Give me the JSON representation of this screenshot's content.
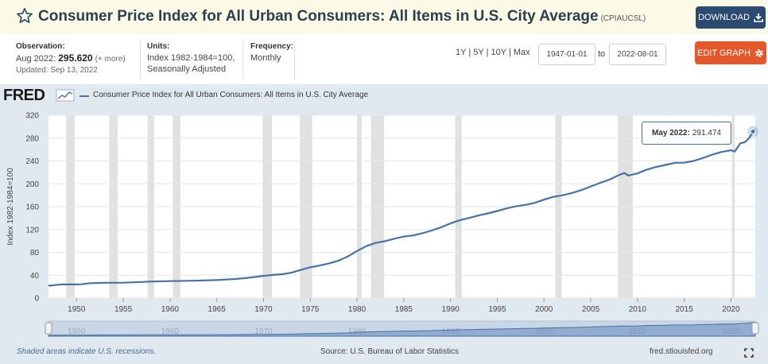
{
  "header": {
    "title": "Consumer Price Index for All Urban Consumers: All Items in U.S. City Average",
    "series_code": "(CPIAUCSL)",
    "download_label": "DOWNLOAD",
    "star_icon": "star-outline-icon",
    "download_icon": "download-icon"
  },
  "meta": {
    "observation_label": "Observation:",
    "observation_date": "Aug 2022:",
    "observation_value": "295.620",
    "observation_more": "(+ more)",
    "updated": "Updated: Sep 13, 2022",
    "units_label": "Units:",
    "units_line1": "Index 1982-1984=100,",
    "units_line2": "Seasonally Adjusted",
    "frequency_label": "Frequency:",
    "frequency_value": "Monthly"
  },
  "controls": {
    "range_1y": "1Y",
    "range_5y": "5Y",
    "range_10y": "10Y",
    "range_max": "Max",
    "separator": "|",
    "start_date": "1947-01-01",
    "to_label": "to",
    "end_date": "2022-08-01",
    "edit_label": "EDIT GRAPH",
    "edit_icon": "gear-icon"
  },
  "brand": {
    "logo_text": "FRED",
    "legend_label": "Consumer Price Index for All Urban Consumers: All Items in U.S. City Average"
  },
  "tooltip": {
    "date": "May 2022:",
    "value": "291.474"
  },
  "footer": {
    "recession_note": "Shaded areas indicate U.S. recessions.",
    "source": "Source: U.S. Bureau of Labor Statistics",
    "site": "fred.stlouisfed.org",
    "fullscreen_icon": "fullscreen-icon"
  },
  "colors": {
    "line": "#4572a7",
    "recession": "#e1e1e1",
    "download_button": "#2d4a70",
    "edit_button": "#e3572b",
    "chart_bg": "#e1e9f0"
  },
  "chart_data": {
    "type": "line",
    "title": "",
    "xlabel": "",
    "ylabel": "Index 1982-1984=100",
    "xlim": [
      1947.0,
      2022.6
    ],
    "ylim": [
      0,
      320
    ],
    "x_ticks": [
      1950,
      1955,
      1960,
      1965,
      1970,
      1975,
      1980,
      1985,
      1990,
      1995,
      2000,
      2005,
      2010,
      2015,
      2020
    ],
    "y_ticks": [
      0,
      40,
      80,
      120,
      160,
      200,
      240,
      280,
      320
    ],
    "grid": true,
    "legend": "top-left",
    "recessions": [
      [
        1948.9,
        1949.8
      ],
      [
        1953.5,
        1954.4
      ],
      [
        1957.6,
        1958.3
      ],
      [
        1960.3,
        1961.1
      ],
      [
        1969.9,
        1970.9
      ],
      [
        1973.9,
        1975.2
      ],
      [
        1980.0,
        1980.5
      ],
      [
        1981.5,
        1982.9
      ],
      [
        1990.5,
        1991.2
      ],
      [
        2001.2,
        2001.9
      ],
      [
        2007.9,
        2009.5
      ],
      [
        2020.1,
        2020.4
      ]
    ],
    "series": [
      {
        "name": "Consumer Price Index for All Urban Consumers: All Items in U.S. City Average",
        "x": [
          1947.0,
          1948.5,
          1949.5,
          1950.5,
          1951.5,
          1953.0,
          1955.0,
          1957.0,
          1958.0,
          1960.0,
          1962.0,
          1964.0,
          1965.0,
          1966.0,
          1967.0,
          1968.0,
          1969.0,
          1970.0,
          1971.0,
          1972.0,
          1973.0,
          1974.0,
          1975.0,
          1976.0,
          1977.0,
          1978.0,
          1979.0,
          1980.0,
          1981.0,
          1982.0,
          1983.0,
          1984.0,
          1985.0,
          1986.0,
          1987.0,
          1988.0,
          1989.0,
          1990.0,
          1991.0,
          1992.0,
          1993.0,
          1994.0,
          1995.0,
          1996.0,
          1997.0,
          1998.0,
          1999.0,
          2000.0,
          2001.0,
          2002.0,
          2003.0,
          2004.0,
          2005.0,
          2006.0,
          2007.0,
          2008.0,
          2008.6,
          2009.0,
          2010.0,
          2011.0,
          2012.0,
          2013.0,
          2014.0,
          2015.0,
          2016.0,
          2017.0,
          2018.0,
          2019.0,
          2020.0,
          2020.4,
          2021.0,
          2021.5,
          2022.0,
          2022.35,
          2022.58
        ],
        "values": [
          21.5,
          24.0,
          23.8,
          24.1,
          26.0,
          26.7,
          26.8,
          28.1,
          28.9,
          29.6,
          30.2,
          31.0,
          31.5,
          32.4,
          33.4,
          34.8,
          36.7,
          38.8,
          40.5,
          41.8,
          44.4,
          49.3,
          53.8,
          56.9,
          60.6,
          65.2,
          72.6,
          82.4,
          90.9,
          96.5,
          99.6,
          103.9,
          107.6,
          109.7,
          113.6,
          118.3,
          124.0,
          130.7,
          136.2,
          140.3,
          144.5,
          148.2,
          152.4,
          156.9,
          160.5,
          163.0,
          166.6,
          172.2,
          177.1,
          179.9,
          184.0,
          188.9,
          195.3,
          201.6,
          207.3,
          215.3,
          219.0,
          214.5,
          218.1,
          224.9,
          229.6,
          233.0,
          236.7,
          237.0,
          240.0,
          245.1,
          251.1,
          255.7,
          258.8,
          256.4,
          270.9,
          273.0,
          281.1,
          291.5,
          295.6
        ]
      }
    ],
    "highlight": {
      "x": 2022.35,
      "value": 291.474
    }
  }
}
